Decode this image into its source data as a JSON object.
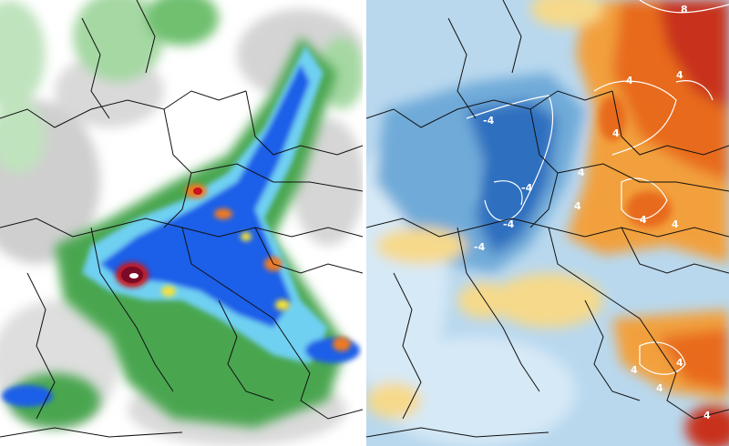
{
  "panels": [
    {
      "id": "precipitation",
      "colors": {
        "background": "#ffffff",
        "light": "#cfcfcf",
        "green_light": "#bfe3bd",
        "green": "#4aa64f",
        "blue_light": "#6fd0f2",
        "blue": "#1d5fe8",
        "blue_dark": "#0b2cb8",
        "yellow": "#f4e23a",
        "orange": "#ef7a22",
        "red": "#c8141c",
        "maroon": "#7a0a28",
        "white_core": "#ffffff"
      }
    },
    {
      "id": "temperature-anomaly",
      "colors": {
        "background": "#b9d8ee",
        "blue_light": "#d6e9f6",
        "blue": "#6faad8",
        "blue_dark": "#2f6fbf",
        "yellow": "#f6d98a",
        "orange": "#f2a03c",
        "orange_dark": "#e86a1e",
        "red": "#c8301a",
        "contour": "#ffffff"
      },
      "contour_labels": [
        "8",
        "4",
        "4",
        "4",
        "4",
        "4",
        "4",
        "4",
        "4",
        "4",
        "4",
        "4",
        "-4",
        "-4",
        "-4",
        "-4"
      ]
    }
  ],
  "map_colors": {
    "borders": "#111111"
  }
}
